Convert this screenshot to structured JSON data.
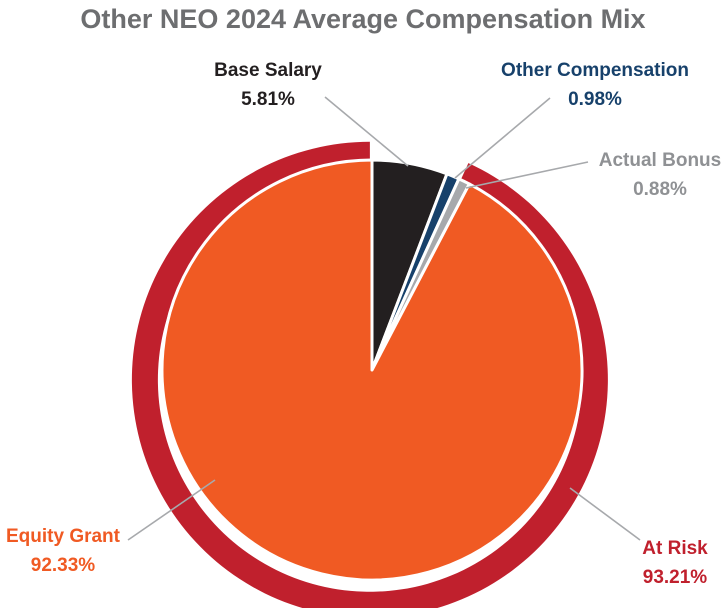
{
  "chart_data": {
    "type": "pie",
    "title": "Other NEO 2024 Average Compensation Mix",
    "slices": [
      {
        "name": "Base Salary",
        "value": 5.81,
        "display": "5.81%",
        "color": "#231f20"
      },
      {
        "name": "Other Compensation",
        "value": 0.98,
        "display": "0.98%",
        "color": "#17416b"
      },
      {
        "name": "Actual Bonus",
        "value": 0.88,
        "display": "0.88%",
        "color": "#a7a9ac"
      },
      {
        "name": "Equity Grant",
        "value": 92.33,
        "display": "92.33%",
        "color": "#f05a23"
      }
    ],
    "outer_ring": {
      "name": "At Risk",
      "value": 93.21,
      "display": "93.21%",
      "color": "#c0202d"
    },
    "label_colors": {
      "Base Salary": "#231f20",
      "Other Compensation": "#17416b",
      "Actual Bonus": "#8f9194",
      "Equity Grant": "#f05a23",
      "At Risk": "#c0202d"
    }
  }
}
